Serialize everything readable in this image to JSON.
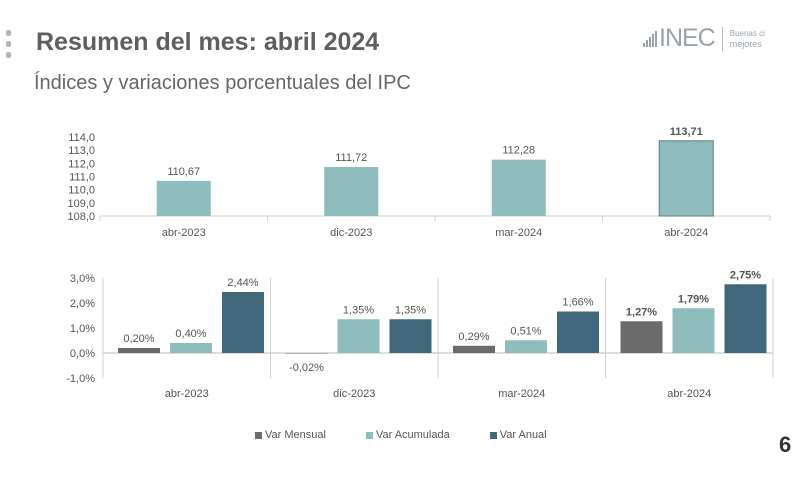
{
  "header": {
    "title": "Resumen del mes: abril 2024",
    "subtitle": "Índices y variaciones porcentuales del IPC",
    "logo": {
      "name": "INEC",
      "tagline_line1": "Buenas ci",
      "tagline_line2": "mejores"
    }
  },
  "page_number": "6",
  "colors": {
    "var_mensual": "#6b6b6b",
    "var_acumulada": "#8fbcbd",
    "var_anual": "#40687a",
    "index_bar": "#8fbcbd"
  },
  "chart_data": [
    {
      "type": "bar",
      "categories": [
        "abr-2023",
        "dic-2023",
        "mar-2024",
        "abr-2024"
      ],
      "values": [
        110.67,
        111.72,
        112.28,
        113.71
      ],
      "data_labels": [
        "110,67",
        "111,72",
        "112,28",
        "113,71"
      ],
      "ylim": [
        108,
        114
      ],
      "yticks": [
        "108,0",
        "109,0",
        "110,0",
        "111,0",
        "112,0",
        "113,0",
        "114,0"
      ],
      "grid": false,
      "title": "",
      "xlabel": "",
      "ylabel": ""
    },
    {
      "type": "bar",
      "categories": [
        "abr-2023",
        "dic-2023",
        "mar-2024",
        "abr-2024"
      ],
      "series": [
        {
          "name": "Var Mensual",
          "values": [
            0.2,
            -0.02,
            0.29,
            1.27
          ],
          "labels": [
            "0,20%",
            "-0,02%",
            "0,29%",
            "1,27%"
          ]
        },
        {
          "name": "Var Acumulada",
          "values": [
            0.4,
            1.35,
            0.51,
            1.79
          ],
          "labels": [
            "0,40%",
            "1,35%",
            "0,51%",
            "1,79%"
          ]
        },
        {
          "name": "Var Anual",
          "values": [
            2.44,
            1.35,
            1.66,
            2.75
          ],
          "labels": [
            "2,44%",
            "1,35%",
            "1,66%",
            "2,75%"
          ]
        }
      ],
      "ylim": [
        -1,
        3
      ],
      "yticks": [
        "-1,0%",
        "0,0%",
        "1,0%",
        "2,0%",
        "3,0%"
      ],
      "legend": "bottom",
      "grid": false,
      "title": "",
      "xlabel": "",
      "ylabel": ""
    }
  ]
}
